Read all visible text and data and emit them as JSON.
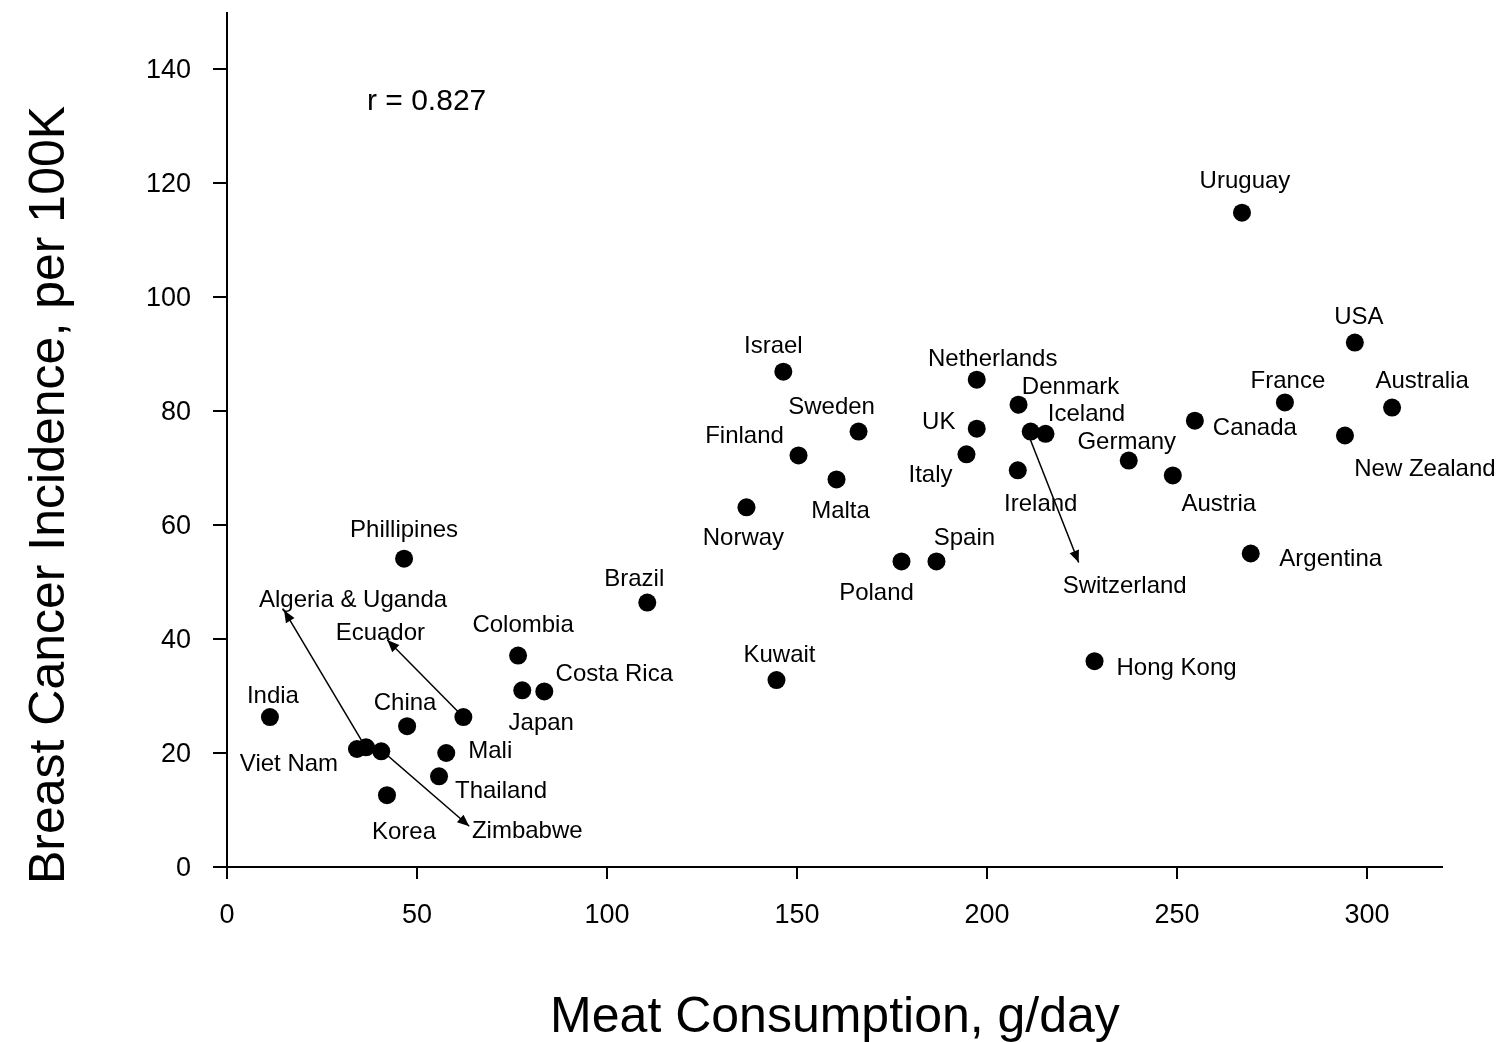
{
  "chart_data": {
    "type": "scatter",
    "xlabel": "Meat Consumption, g/day",
    "ylabel": "Breast Cancer Incidence, per 100K",
    "xlim": [
      0,
      320
    ],
    "ylim": [
      0,
      150
    ],
    "xticks": [
      0,
      50,
      100,
      150,
      200,
      250,
      300
    ],
    "yticks": [
      0,
      20,
      40,
      60,
      80,
      100,
      120,
      140
    ],
    "grid": false,
    "marker": "circle",
    "series": [
      {
        "color": "#000000",
        "x": [
          267.1,
          296.8,
          306.6,
          278.4,
          254.7,
          294.2,
          248.9,
          237.3,
          269.4,
          228.3,
          197.3,
          208.3,
          215.4,
          197.3,
          194.6,
          208.1,
          211.5,
          186.7,
          177.5,
          146.4,
          166.2,
          150.4,
          160.4,
          136.7,
          144.6,
          110.6,
          76.6,
          77.7,
          83.5,
          46.6,
          11.3,
          47.4,
          62.2,
          57.7,
          55.8,
          42.1,
          34.2,
          36.6,
          40.6
        ],
        "values": [
          114.8,
          92.0,
          80.6,
          81.5,
          78.3,
          75.7,
          68.7,
          71.3,
          55.0,
          36.1,
          85.5,
          81.1,
          76.0,
          76.9,
          72.4,
          69.6,
          76.4,
          53.6,
          53.6,
          86.9,
          76.4,
          72.2,
          68.0,
          63.1,
          32.8,
          46.4,
          37.1,
          31.0,
          30.8,
          54.1,
          26.3,
          24.7,
          26.3,
          20.0,
          15.9,
          12.6,
          20.7,
          21.0,
          20.3
        ]
      }
    ],
    "annotations": [
      {
        "text": "Uruguay",
        "x": 267.1,
        "y": 114.8
      },
      {
        "text": "USA",
        "x": 296.8,
        "y": 92.0
      },
      {
        "text": "Australia",
        "x": 306.6,
        "y": 80.6
      },
      {
        "text": "France",
        "x": 278.4,
        "y": 81.5
      },
      {
        "text": "Canada",
        "x": 254.7,
        "y": 78.3
      },
      {
        "text": "New Zealand",
        "x": 294.2,
        "y": 75.7
      },
      {
        "text": "Austria",
        "x": 248.9,
        "y": 68.7
      },
      {
        "text": "Germany",
        "x": 237.3,
        "y": 71.3
      },
      {
        "text": "Argentina",
        "x": 269.4,
        "y": 55.0
      },
      {
        "text": "Hong Kong",
        "x": 228.3,
        "y": 36.1
      },
      {
        "text": "Netherlands",
        "x": 197.3,
        "y": 85.5
      },
      {
        "text": "Denmark",
        "x": 208.3,
        "y": 81.1
      },
      {
        "text": "Iceland",
        "x": 215.4,
        "y": 76.0
      },
      {
        "text": "UK",
        "x": 197.3,
        "y": 76.9
      },
      {
        "text": "Italy",
        "x": 194.6,
        "y": 72.4
      },
      {
        "text": "Ireland",
        "x": 208.1,
        "y": 69.6
      },
      {
        "text": "Switzerland",
        "x": 211.5,
        "y": 76.4
      },
      {
        "text": "Spain",
        "x": 186.7,
        "y": 53.6
      },
      {
        "text": "Poland",
        "x": 177.5,
        "y": 53.6
      },
      {
        "text": "Israel",
        "x": 146.4,
        "y": 86.9
      },
      {
        "text": "Sweden",
        "x": 166.2,
        "y": 76.4
      },
      {
        "text": "Finland",
        "x": 150.4,
        "y": 72.2
      },
      {
        "text": "Malta",
        "x": 160.4,
        "y": 68.0
      },
      {
        "text": "Norway",
        "x": 136.7,
        "y": 63.1
      },
      {
        "text": "Kuwait",
        "x": 144.6,
        "y": 32.8
      },
      {
        "text": "Brazil",
        "x": 110.6,
        "y": 46.4
      },
      {
        "text": "Colombia",
        "x": 76.6,
        "y": 37.1
      },
      {
        "text": "Japan",
        "x": 77.7,
        "y": 31.0
      },
      {
        "text": "Costa Rica",
        "x": 83.5,
        "y": 30.8
      },
      {
        "text": "Phillipines",
        "x": 46.6,
        "y": 54.1
      },
      {
        "text": "India",
        "x": 11.3,
        "y": 26.3
      },
      {
        "text": "China",
        "x": 47.4,
        "y": 24.7
      },
      {
        "text": "Ecuador",
        "x": 62.2,
        "y": 26.3
      },
      {
        "text": "Mali",
        "x": 57.7,
        "y": 20.0
      },
      {
        "text": "Thailand",
        "x": 55.8,
        "y": 15.9
      },
      {
        "text": "Korea",
        "x": 42.1,
        "y": 12.6
      },
      {
        "text": "Viet Nam",
        "x": 34.2,
        "y": 20.7
      },
      {
        "text": "Algeria & Uganda",
        "x": 36.6,
        "y": 21.0
      },
      {
        "text": "Zimbabwe",
        "x": 40.6,
        "y": 20.3
      },
      "r = 0.827"
    ]
  }
}
